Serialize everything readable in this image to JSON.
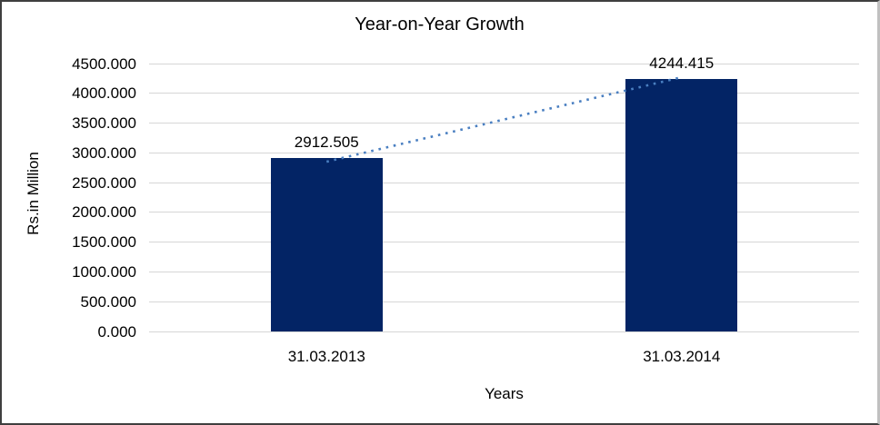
{
  "chart": {
    "title": "Year-on-Year Growth",
    "y_axis_title": "Rs.in Million",
    "x_axis_title": "Years",
    "colors": {
      "bar": "#032465",
      "trendline": "#4a7fc1",
      "gridline": "#d6d6d6",
      "text": "#000000",
      "background": "#ffffff",
      "frame_border_dark": "#3f3f3f",
      "frame_border_light": "#c0c0c0"
    }
  },
  "chart_data": {
    "type": "bar",
    "title": "Year-on-Year Growth",
    "xlabel": "Years",
    "ylabel": "Rs.in Million",
    "categories": [
      "31.03.2013",
      "31.03.2014"
    ],
    "values": [
      2912.505,
      4244.415
    ],
    "value_labels": [
      "2912.505",
      "4244.415"
    ],
    "ylim": [
      0,
      4500
    ],
    "y_ticks": [
      "0.000",
      "500.000",
      "1000.000",
      "1500.000",
      "2000.000",
      "2500.000",
      "3000.000",
      "3500.000",
      "4000.000",
      "4500.000"
    ],
    "grid": true,
    "legend": false,
    "trendline": {
      "type": "linear",
      "style": "dotted"
    }
  }
}
